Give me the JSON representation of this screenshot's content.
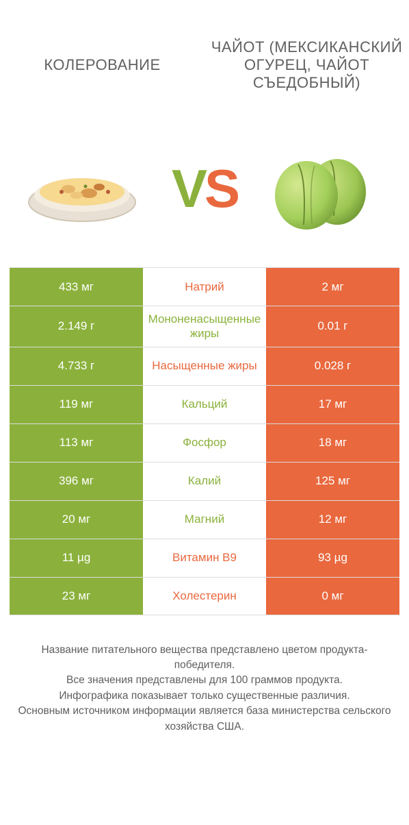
{
  "colors": {
    "green": "#8bb13c",
    "orange": "#e9683e",
    "white": "#ffffff",
    "text": "#5e5e5e"
  },
  "header": {
    "left": "КОЛЕРОВАНИЕ",
    "right": "ЧАЙОТ (МЕКСИКАНСКИЙ ОГУРЕЦ, ЧАЙОТ СЪЕДОБНЫЙ)"
  },
  "vs": {
    "v": "V",
    "s": "S"
  },
  "table": {
    "rows": [
      {
        "left": "433 мг",
        "label": "Натрий",
        "right": "2 мг",
        "winner": "right",
        "labelColor": "#e9683e"
      },
      {
        "left": "2.149 г",
        "label": "Мононенасыщенные жиры",
        "right": "0.01 г",
        "winner": "left",
        "labelColor": "#8bb13c"
      },
      {
        "left": "4.733 г",
        "label": "Насыщенные жиры",
        "right": "0.028 г",
        "winner": "right",
        "labelColor": "#e9683e"
      },
      {
        "left": "119 мг",
        "label": "Кальций",
        "right": "17 мг",
        "winner": "left",
        "labelColor": "#8bb13c"
      },
      {
        "left": "113 мг",
        "label": "Фосфор",
        "right": "18 мг",
        "winner": "left",
        "labelColor": "#8bb13c"
      },
      {
        "left": "396 мг",
        "label": "Калий",
        "right": "125 мг",
        "winner": "left",
        "labelColor": "#8bb13c"
      },
      {
        "left": "20 мг",
        "label": "Магний",
        "right": "12 мг",
        "winner": "left",
        "labelColor": "#8bb13c"
      },
      {
        "left": "11 µg",
        "label": "Витамин B9",
        "right": "93 µg",
        "winner": "right",
        "labelColor": "#e9683e"
      },
      {
        "left": "23 мг",
        "label": "Холестерин",
        "right": "0 мг",
        "winner": "right",
        "labelColor": "#e9683e"
      }
    ]
  },
  "footer": {
    "line1": "Название питательного вещества представлено цветом продукта-победителя.",
    "line2": "Все значения представлены для 100 граммов продукта.",
    "line3": "Инфографика показывает только существенные различия.",
    "line4": "Основным источником информации является база министерства сельского хозяйства США."
  }
}
